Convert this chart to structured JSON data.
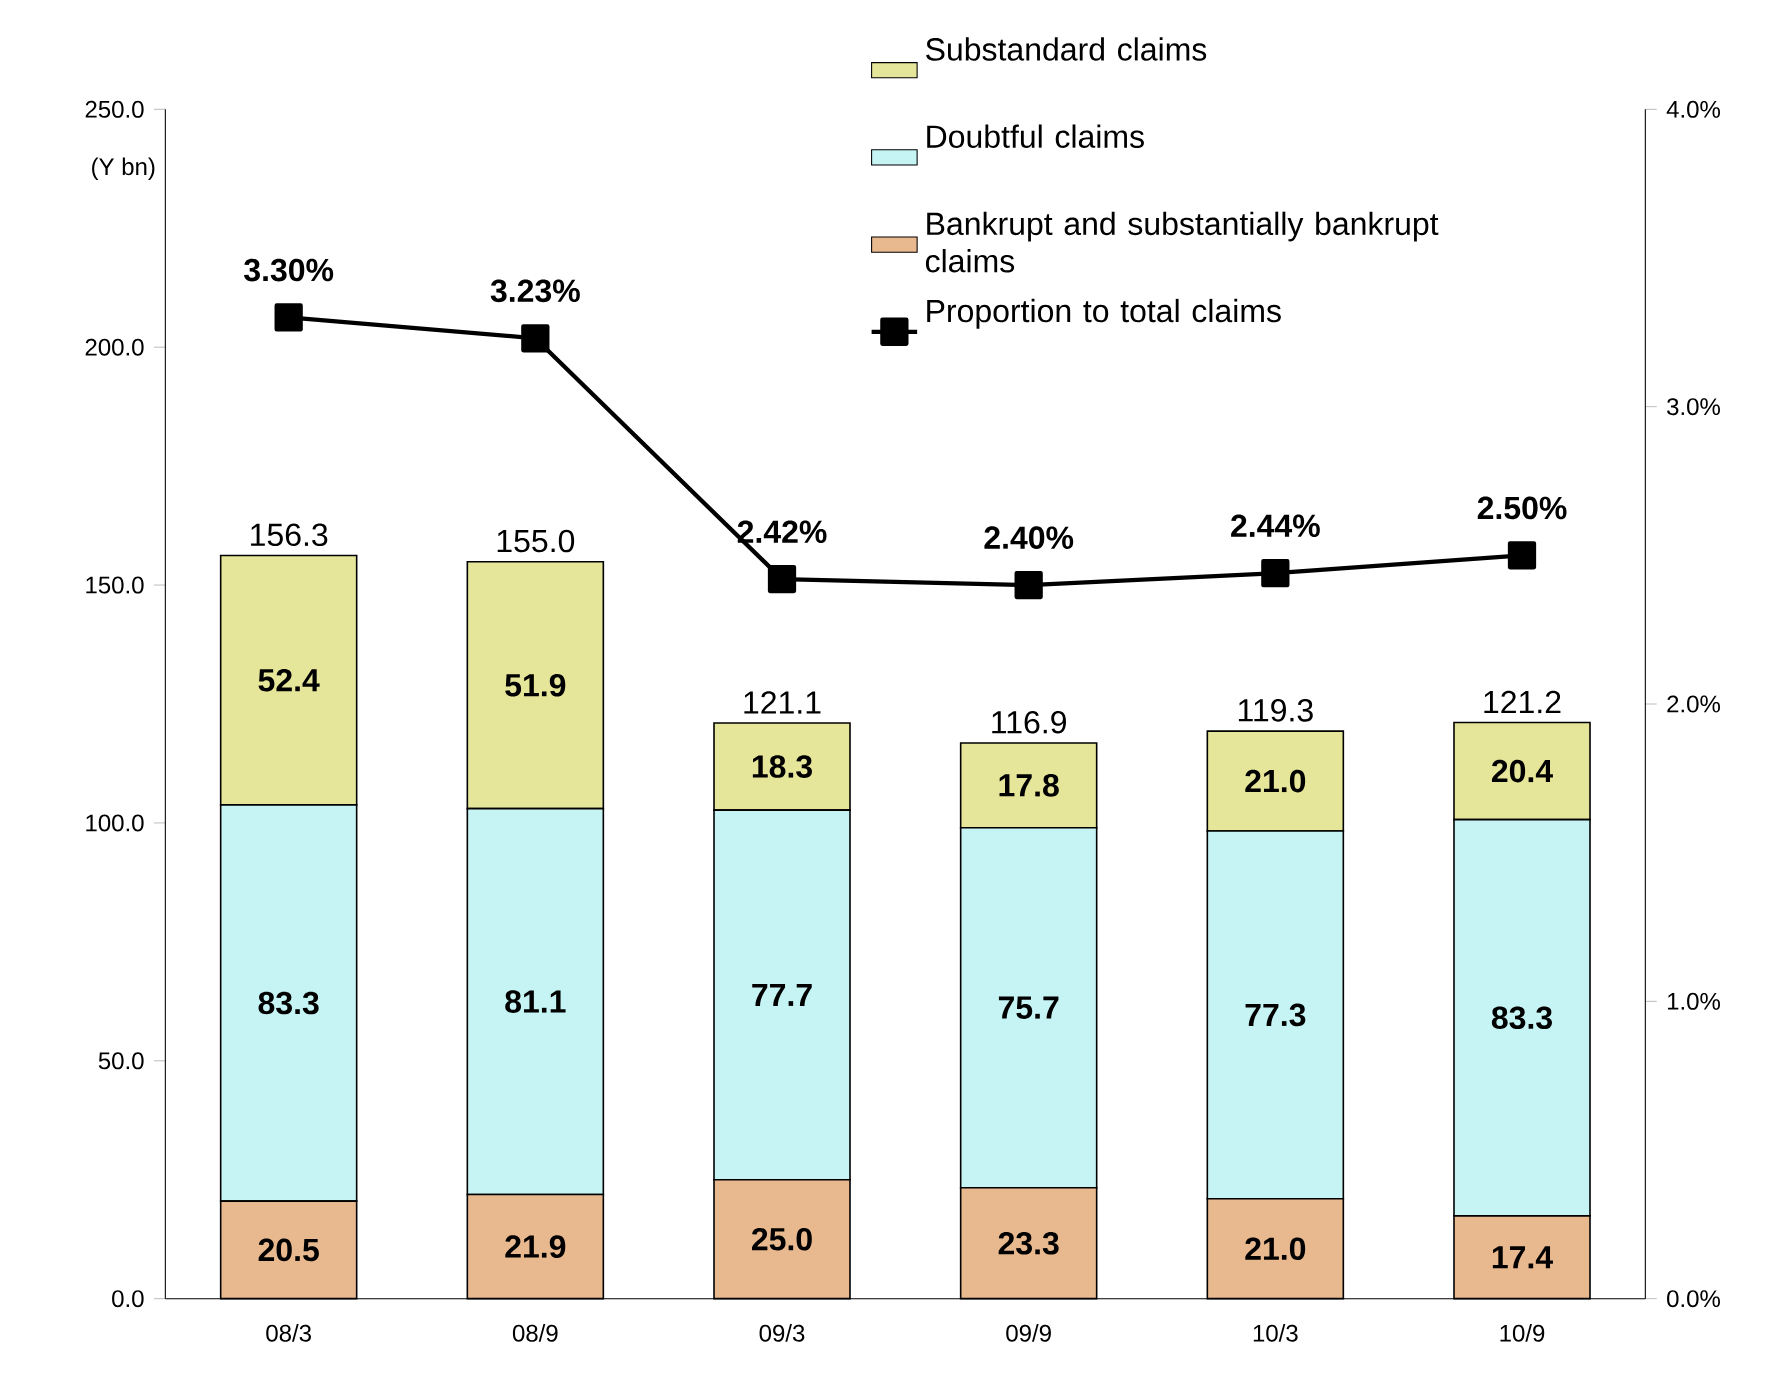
{
  "chart_data": {
    "type": "bar",
    "stacked": true,
    "categories": [
      "08/3",
      "08/9",
      "09/3",
      "09/9",
      "10/3",
      "10/9"
    ],
    "ylabel": "(Y bn)",
    "series": [
      {
        "name": "Bankrupt and substantially bankrupt claims",
        "color": "#e8b88e",
        "values": [
          20.5,
          21.9,
          25.0,
          23.3,
          21.0,
          17.4
        ],
        "value_labels": [
          "20.5",
          "21.9",
          "25.0",
          "23.3",
          "21.0",
          "17.4"
        ]
      },
      {
        "name": "Doubtful claims",
        "color": "#c6f3f3",
        "values": [
          83.3,
          81.1,
          77.7,
          75.7,
          77.3,
          83.3
        ],
        "value_labels": [
          "83.3",
          "81.1",
          "77.7",
          "75.7",
          "77.3",
          "83.3"
        ]
      },
      {
        "name": "Substandard claims",
        "color": "#e6e69a",
        "values": [
          52.4,
          51.9,
          18.3,
          17.8,
          21.0,
          20.4
        ],
        "value_labels": [
          "52.4",
          "51.9",
          "18.3",
          "17.8",
          "21.0",
          "20.4"
        ]
      },
      {
        "name": "Proportion to total claims",
        "type": "line",
        "axis": "y2",
        "color": "#000000",
        "marker": "square",
        "line_style": "solid",
        "values": [
          3.3,
          3.23,
          2.42,
          2.4,
          2.44,
          2.5
        ],
        "value_labels": [
          "3.30%",
          "3.23%",
          "2.42%",
          "2.40%",
          "2.44%",
          "2.50%"
        ]
      }
    ],
    "totals": [
      "156.3",
      "155.0",
      "121.1",
      "116.9",
      "119.3",
      "121.2"
    ],
    "ylim": [
      0,
      250
    ],
    "yticks": [
      {
        "value": 0,
        "label": "0.0"
      },
      {
        "value": 50,
        "label": "50.0"
      },
      {
        "value": 100,
        "label": "100.0"
      },
      {
        "value": 150,
        "label": "150.0"
      },
      {
        "value": 200,
        "label": "200.0"
      },
      {
        "value": 250,
        "label": "250.0"
      }
    ],
    "y2lim": [
      0,
      4
    ],
    "y2ticks": [
      {
        "value": 0,
        "label": "0.0%"
      },
      {
        "value": 1,
        "label": "1.0%"
      },
      {
        "value": 2,
        "label": "2.0%"
      },
      {
        "value": 3,
        "label": "3.0%"
      },
      {
        "value": 4,
        "label": "4.0%"
      }
    ],
    "legend": "top right",
    "grid": false
  }
}
